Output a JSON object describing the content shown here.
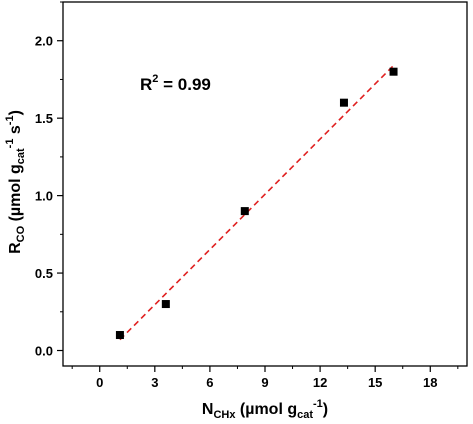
{
  "chart_data": {
    "type": "scatter",
    "x": [
      1.1,
      3.6,
      7.9,
      13.3,
      16.0
    ],
    "y": [
      0.1,
      0.3,
      0.9,
      1.6,
      1.8
    ],
    "xlim": [
      -2,
      20
    ],
    "ylim": [
      -0.1,
      2.25
    ],
    "xticks": [
      0,
      3,
      6,
      9,
      12,
      15,
      18
    ],
    "yticks": [
      0.0,
      0.5,
      1.0,
      1.5,
      2.0
    ],
    "xtick_labels": [
      "0",
      "3",
      "6",
      "9",
      "12",
      "15",
      "18"
    ],
    "ytick_labels": [
      "0.0",
      "0.5",
      "1.0",
      "1.5",
      "2.0"
    ],
    "fit_line": {
      "x": [
        1.1,
        16.0
      ],
      "y": [
        0.07,
        1.84
      ]
    },
    "annotation": {
      "base": "R",
      "sup": "2",
      "rest": " = 0.99"
    },
    "xlabel": {
      "main": "N",
      "sub": "CHx",
      "open": " (µmol g",
      "sub2": "cat",
      "sup": "-1",
      "close": ")"
    },
    "ylabel": {
      "main": "R",
      "sub": "CO",
      "open": " (µmol g",
      "sub2": "cat",
      "sup": "-1",
      "mid": " s",
      "sup2": "-1",
      "close": ")"
    },
    "grid": false,
    "colors": {
      "points": "#000000",
      "fit": "#e02020"
    }
  }
}
